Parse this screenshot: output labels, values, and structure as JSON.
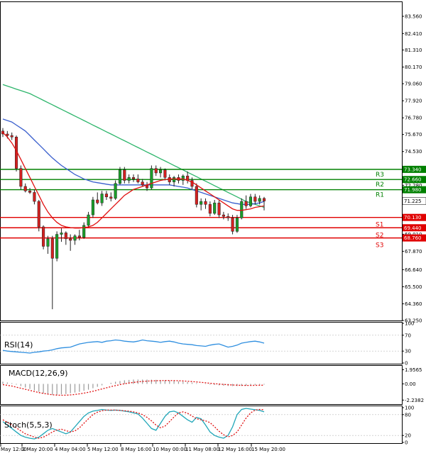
{
  "chart_data": {
    "type": "candlestick",
    "instrument_panes": [
      "price",
      "RSI(14)",
      "MACD(12,26,9)",
      "Stoch(5,5,3)"
    ],
    "price_axis": {
      "ticks": [
        83.56,
        82.41,
        81.31,
        80.17,
        79.06,
        77.92,
        76.78,
        75.67,
        74.53,
        73.43,
        72.28,
        71.225,
        70.13,
        69.01,
        67.87,
        66.64,
        65.5,
        64.36,
        63.25
      ],
      "tick_labels": [
        "83.560",
        "82.410",
        "81.310",
        "80.170",
        "79.060",
        "77.920",
        "76.780",
        "75.670",
        "74.530",
        "73.430",
        "72.280",
        "71.225",
        "70.130",
        "69.010",
        "67.870",
        "66.640",
        "65.500",
        "64.360",
        "63.250"
      ],
      "ylim": [
        63.25,
        84.5
      ]
    },
    "x_axis": {
      "labels": [
        "May 12:00",
        "2 May 20:00",
        "4 May 04:00",
        "5 May 12:00",
        "8 May 16:00",
        "10 May 00:00",
        "11 May 08:00",
        "12 May 16:00",
        "15 May 20:00"
      ]
    },
    "levels": [
      {
        "name": "R3",
        "value": 73.34,
        "label": "73.340",
        "color": "#008000"
      },
      {
        "name": "R2",
        "value": 72.66,
        "label": "72.660",
        "color": "#008000"
      },
      {
        "name": "R1",
        "value": 71.98,
        "label": "71.980",
        "color": "#008000"
      },
      {
        "name": "S1",
        "value": 70.13,
        "label": "70.130",
        "color": "#e00000"
      },
      {
        "name": "S2",
        "value": 69.44,
        "label": "69.440",
        "color": "#e00000"
      },
      {
        "name": "S3",
        "value": 68.76,
        "label": "68.760",
        "color": "#e00000"
      }
    ],
    "current_price": {
      "value": 71.225,
      "label": "71.225"
    },
    "candles": [
      {
        "o": 75.9,
        "h": 76.1,
        "l": 75.5,
        "c": 75.7
      },
      {
        "o": 75.7,
        "h": 75.9,
        "l": 75.4,
        "c": 75.6
      },
      {
        "o": 75.6,
        "h": 75.8,
        "l": 75.3,
        "c": 75.5
      },
      {
        "o": 75.5,
        "h": 75.6,
        "l": 73.2,
        "c": 73.4
      },
      {
        "o": 73.4,
        "h": 73.6,
        "l": 72.0,
        "c": 72.2
      },
      {
        "o": 72.2,
        "h": 72.4,
        "l": 71.8,
        "c": 71.9
      },
      {
        "o": 71.9,
        "h": 72.1,
        "l": 71.7,
        "c": 71.8
      },
      {
        "o": 71.8,
        "h": 72.0,
        "l": 71.0,
        "c": 71.2
      },
      {
        "o": 71.2,
        "h": 71.3,
        "l": 69.2,
        "c": 69.5
      },
      {
        "o": 69.5,
        "h": 69.6,
        "l": 68.0,
        "c": 68.2
      },
      {
        "o": 68.2,
        "h": 68.9,
        "l": 67.7,
        "c": 68.7
      },
      {
        "o": 68.7,
        "h": 68.9,
        "l": 64.0,
        "c": 67.4
      },
      {
        "o": 67.4,
        "h": 69.2,
        "l": 67.2,
        "c": 69.0
      },
      {
        "o": 69.0,
        "h": 69.4,
        "l": 68.5,
        "c": 69.1
      },
      {
        "o": 69.1,
        "h": 69.2,
        "l": 68.3,
        "c": 68.7
      },
      {
        "o": 68.7,
        "h": 69.0,
        "l": 67.9,
        "c": 68.6
      },
      {
        "o": 68.6,
        "h": 69.0,
        "l": 68.3,
        "c": 68.9
      },
      {
        "o": 68.9,
        "h": 69.3,
        "l": 68.6,
        "c": 68.8
      },
      {
        "o": 68.8,
        "h": 69.8,
        "l": 68.7,
        "c": 69.6
      },
      {
        "o": 69.6,
        "h": 70.5,
        "l": 69.5,
        "c": 70.3
      },
      {
        "o": 70.3,
        "h": 71.5,
        "l": 70.1,
        "c": 71.3
      },
      {
        "o": 71.3,
        "h": 71.8,
        "l": 71.0,
        "c": 71.1
      },
      {
        "o": 71.1,
        "h": 71.9,
        "l": 70.9,
        "c": 71.7
      },
      {
        "o": 71.7,
        "h": 71.9,
        "l": 71.3,
        "c": 71.5
      },
      {
        "o": 71.5,
        "h": 71.8,
        "l": 71.2,
        "c": 71.4
      },
      {
        "o": 71.4,
        "h": 72.6,
        "l": 71.3,
        "c": 72.4
      },
      {
        "o": 72.4,
        "h": 73.5,
        "l": 72.3,
        "c": 73.3
      },
      {
        "o": 73.3,
        "h": 73.5,
        "l": 72.4,
        "c": 72.6
      },
      {
        "o": 72.6,
        "h": 73.0,
        "l": 72.4,
        "c": 72.8
      },
      {
        "o": 72.8,
        "h": 73.0,
        "l": 72.5,
        "c": 72.7
      },
      {
        "o": 72.7,
        "h": 73.0,
        "l": 72.4,
        "c": 72.5
      },
      {
        "o": 72.5,
        "h": 72.7,
        "l": 72.2,
        "c": 72.3
      },
      {
        "o": 72.3,
        "h": 72.5,
        "l": 71.9,
        "c": 72.1
      },
      {
        "o": 72.1,
        "h": 73.6,
        "l": 72.0,
        "c": 73.4
      },
      {
        "o": 73.4,
        "h": 73.6,
        "l": 72.9,
        "c": 73.1
      },
      {
        "o": 73.1,
        "h": 73.5,
        "l": 72.8,
        "c": 73.3
      },
      {
        "o": 73.3,
        "h": 73.4,
        "l": 72.6,
        "c": 72.8
      },
      {
        "o": 72.8,
        "h": 73.0,
        "l": 72.3,
        "c": 72.5
      },
      {
        "o": 72.5,
        "h": 72.9,
        "l": 72.2,
        "c": 72.8
      },
      {
        "o": 72.8,
        "h": 73.0,
        "l": 72.4,
        "c": 72.6
      },
      {
        "o": 72.6,
        "h": 73.0,
        "l": 72.3,
        "c": 72.9
      },
      {
        "o": 72.9,
        "h": 73.2,
        "l": 72.4,
        "c": 72.6
      },
      {
        "o": 72.6,
        "h": 72.8,
        "l": 72.0,
        "c": 72.2
      },
      {
        "o": 72.2,
        "h": 72.4,
        "l": 70.8,
        "c": 71.0
      },
      {
        "o": 71.0,
        "h": 71.4,
        "l": 70.6,
        "c": 71.2
      },
      {
        "o": 71.2,
        "h": 71.4,
        "l": 70.7,
        "c": 71.0
      },
      {
        "o": 71.0,
        "h": 71.2,
        "l": 70.2,
        "c": 70.4
      },
      {
        "o": 70.4,
        "h": 71.3,
        "l": 70.3,
        "c": 71.1
      },
      {
        "o": 71.1,
        "h": 71.3,
        "l": 70.1,
        "c": 70.3
      },
      {
        "o": 70.3,
        "h": 70.5,
        "l": 70.0,
        "c": 70.2
      },
      {
        "o": 70.2,
        "h": 70.4,
        "l": 69.9,
        "c": 70.1
      },
      {
        "o": 70.1,
        "h": 70.3,
        "l": 69.0,
        "c": 69.2
      },
      {
        "o": 69.2,
        "h": 70.3,
        "l": 69.1,
        "c": 70.1
      },
      {
        "o": 70.1,
        "h": 71.4,
        "l": 70.0,
        "c": 71.2
      },
      {
        "o": 71.2,
        "h": 71.6,
        "l": 70.7,
        "c": 70.9
      },
      {
        "o": 70.9,
        "h": 71.7,
        "l": 70.8,
        "c": 71.5
      },
      {
        "o": 71.5,
        "h": 71.7,
        "l": 71.0,
        "c": 71.2
      },
      {
        "o": 71.2,
        "h": 71.6,
        "l": 71.0,
        "c": 71.4
      },
      {
        "o": 71.4,
        "h": 71.5,
        "l": 70.6,
        "c": 71.225
      }
    ],
    "ma_fast_red": [
      75.8,
      75.5,
      75.1,
      74.6,
      74.0,
      73.4,
      72.8,
      72.2,
      71.6,
      71.0,
      70.5,
      70.1,
      69.8,
      69.6,
      69.5,
      69.45,
      69.42,
      69.42,
      69.45,
      69.5,
      69.6,
      69.8,
      70.1,
      70.4,
      70.7,
      71.0,
      71.3,
      71.6,
      71.8,
      72.0,
      72.1,
      72.2,
      72.3,
      72.4,
      72.5,
      72.6,
      72.65,
      72.7,
      72.7,
      72.7,
      72.7,
      72.6,
      72.5,
      72.3,
      72.1,
      71.9,
      71.7,
      71.5,
      71.3,
      71.1,
      70.9,
      70.7,
      70.6,
      70.6,
      70.65,
      70.7,
      70.8,
      70.85,
      70.9
    ],
    "ma_mid_blue": [
      76.7,
      76.6,
      76.5,
      76.3,
      76.1,
      75.9,
      75.6,
      75.3,
      75.0,
      74.7,
      74.4,
      74.1,
      73.85,
      73.6,
      73.4,
      73.2,
      73.0,
      72.85,
      72.7,
      72.6,
      72.5,
      72.45,
      72.4,
      72.35,
      72.3,
      72.3,
      72.3,
      72.3,
      72.3,
      72.3,
      72.3,
      72.3,
      72.3,
      72.3,
      72.3,
      72.3,
      72.3,
      72.3,
      72.25,
      72.2,
      72.15,
      72.1,
      72.0,
      71.9,
      71.8,
      71.7,
      71.6,
      71.5,
      71.4,
      71.3,
      71.2,
      71.1,
      71.05,
      71.0,
      71.0,
      71.0,
      71.05,
      71.1,
      71.2
    ],
    "ma_slow_green": [
      79.0,
      78.9,
      78.8,
      78.7,
      78.6,
      78.5,
      78.4,
      78.25,
      78.1,
      77.95,
      77.8,
      77.65,
      77.5,
      77.35,
      77.2,
      77.05,
      76.9,
      76.75,
      76.6,
      76.45,
      76.3,
      76.15,
      76.0,
      75.85,
      75.7,
      75.55,
      75.4,
      75.25,
      75.1,
      74.95,
      74.8,
      74.65,
      74.5,
      74.35,
      74.2,
      74.05,
      73.9,
      73.75,
      73.6,
      73.45,
      73.3,
      73.15,
      73.0,
      72.85,
      72.7,
      72.55,
      72.4,
      72.25,
      72.1,
      71.95,
      71.8,
      71.65,
      71.5,
      71.35,
      71.2,
      71.1,
      71.0,
      70.9,
      70.8
    ],
    "rsi": {
      "label": "RSI(14)",
      "ylim": [
        0,
        100
      ],
      "ticks": [
        100,
        70,
        30,
        0
      ],
      "tick_labels": [
        "100",
        "70",
        "30",
        "0"
      ],
      "values": [
        32,
        30,
        29,
        28,
        27,
        26,
        25,
        27,
        28,
        30,
        31,
        33,
        36,
        38,
        39,
        40,
        44,
        48,
        50,
        52,
        53,
        54,
        52,
        55,
        56,
        58,
        57,
        55,
        54,
        53,
        55,
        58,
        56,
        55,
        54,
        52,
        54,
        55,
        53,
        50,
        48,
        47,
        46,
        44,
        43,
        42,
        45,
        47,
        48,
        44,
        40,
        42,
        45,
        50,
        52,
        54,
        55,
        53,
        50
      ]
    },
    "macd": {
      "label": "MACD(12,26,9)",
      "ticks": [
        1.9565,
        0.0,
        -2.2382
      ],
      "tick_labels": [
        "1.9565",
        "0.00",
        "-2.2382"
      ],
      "ylim": [
        -2.7,
        2.4
      ],
      "hist": [
        0.3,
        0.2,
        0.1,
        -0.1,
        -0.3,
        -0.5,
        -0.7,
        -0.9,
        -1.1,
        -1.3,
        -1.4,
        -1.5,
        -1.5,
        -1.45,
        -1.4,
        -1.3,
        -1.2,
        -1.1,
        -0.95,
        -0.8,
        -0.6,
        -0.4,
        -0.2,
        0.0,
        0.15,
        0.3,
        0.4,
        0.5,
        0.55,
        0.6,
        0.6,
        0.6,
        0.6,
        0.58,
        0.56,
        0.54,
        0.5,
        0.45,
        0.4,
        0.35,
        0.3,
        0.25,
        0.18,
        0.1,
        0.02,
        -0.05,
        -0.1,
        -0.15,
        -0.2,
        -0.25,
        -0.28,
        -0.3,
        -0.3,
        -0.28,
        -0.25,
        -0.2,
        -0.15,
        -0.12,
        -0.1
      ],
      "signal": [
        -0.1,
        -0.2,
        -0.3,
        -0.45,
        -0.6,
        -0.75,
        -0.9,
        -1.05,
        -1.2,
        -1.32,
        -1.42,
        -1.5,
        -1.55,
        -1.57,
        -1.56,
        -1.52,
        -1.46,
        -1.38,
        -1.28,
        -1.16,
        -1.02,
        -0.86,
        -0.7,
        -0.54,
        -0.38,
        -0.24,
        -0.1,
        0.02,
        0.12,
        0.2,
        0.28,
        0.34,
        0.38,
        0.42,
        0.44,
        0.46,
        0.47,
        0.47,
        0.46,
        0.44,
        0.41,
        0.37,
        0.32,
        0.27,
        0.21,
        0.15,
        0.09,
        0.03,
        -0.02,
        -0.07,
        -0.11,
        -0.15,
        -0.18,
        -0.2,
        -0.21,
        -0.21,
        -0.2,
        -0.19,
        -0.18
      ]
    },
    "stoch": {
      "label": "Stoch(5,5,3)",
      "ylim": [
        0,
        100
      ],
      "ticks": [
        100,
        80,
        20,
        0
      ],
      "tick_labels": [
        "100",
        "80",
        "20",
        "0"
      ],
      "k": [
        60,
        50,
        40,
        30,
        20,
        15,
        12,
        10,
        15,
        25,
        35,
        40,
        35,
        30,
        25,
        30,
        45,
        60,
        75,
        85,
        90,
        92,
        95,
        93,
        92,
        93,
        92,
        90,
        88,
        85,
        82,
        70,
        55,
        40,
        35,
        55,
        75,
        88,
        90,
        85,
        75,
        65,
        58,
        72,
        68,
        50,
        30,
        20,
        15,
        12,
        20,
        45,
        80,
        95,
        98,
        96,
        94,
        92,
        88
      ],
      "d": [
        65,
        58,
        50,
        42,
        33,
        25,
        20,
        15,
        12,
        15,
        22,
        30,
        36,
        38,
        34,
        30,
        33,
        42,
        55,
        68,
        80,
        87,
        91,
        93,
        93,
        93,
        92,
        91,
        90,
        88,
        85,
        80,
        72,
        62,
        50,
        42,
        47,
        60,
        73,
        85,
        88,
        84,
        76,
        68,
        65,
        62,
        57,
        45,
        32,
        22,
        16,
        20,
        30,
        50,
        70,
        85,
        93,
        95,
        94
      ]
    }
  }
}
